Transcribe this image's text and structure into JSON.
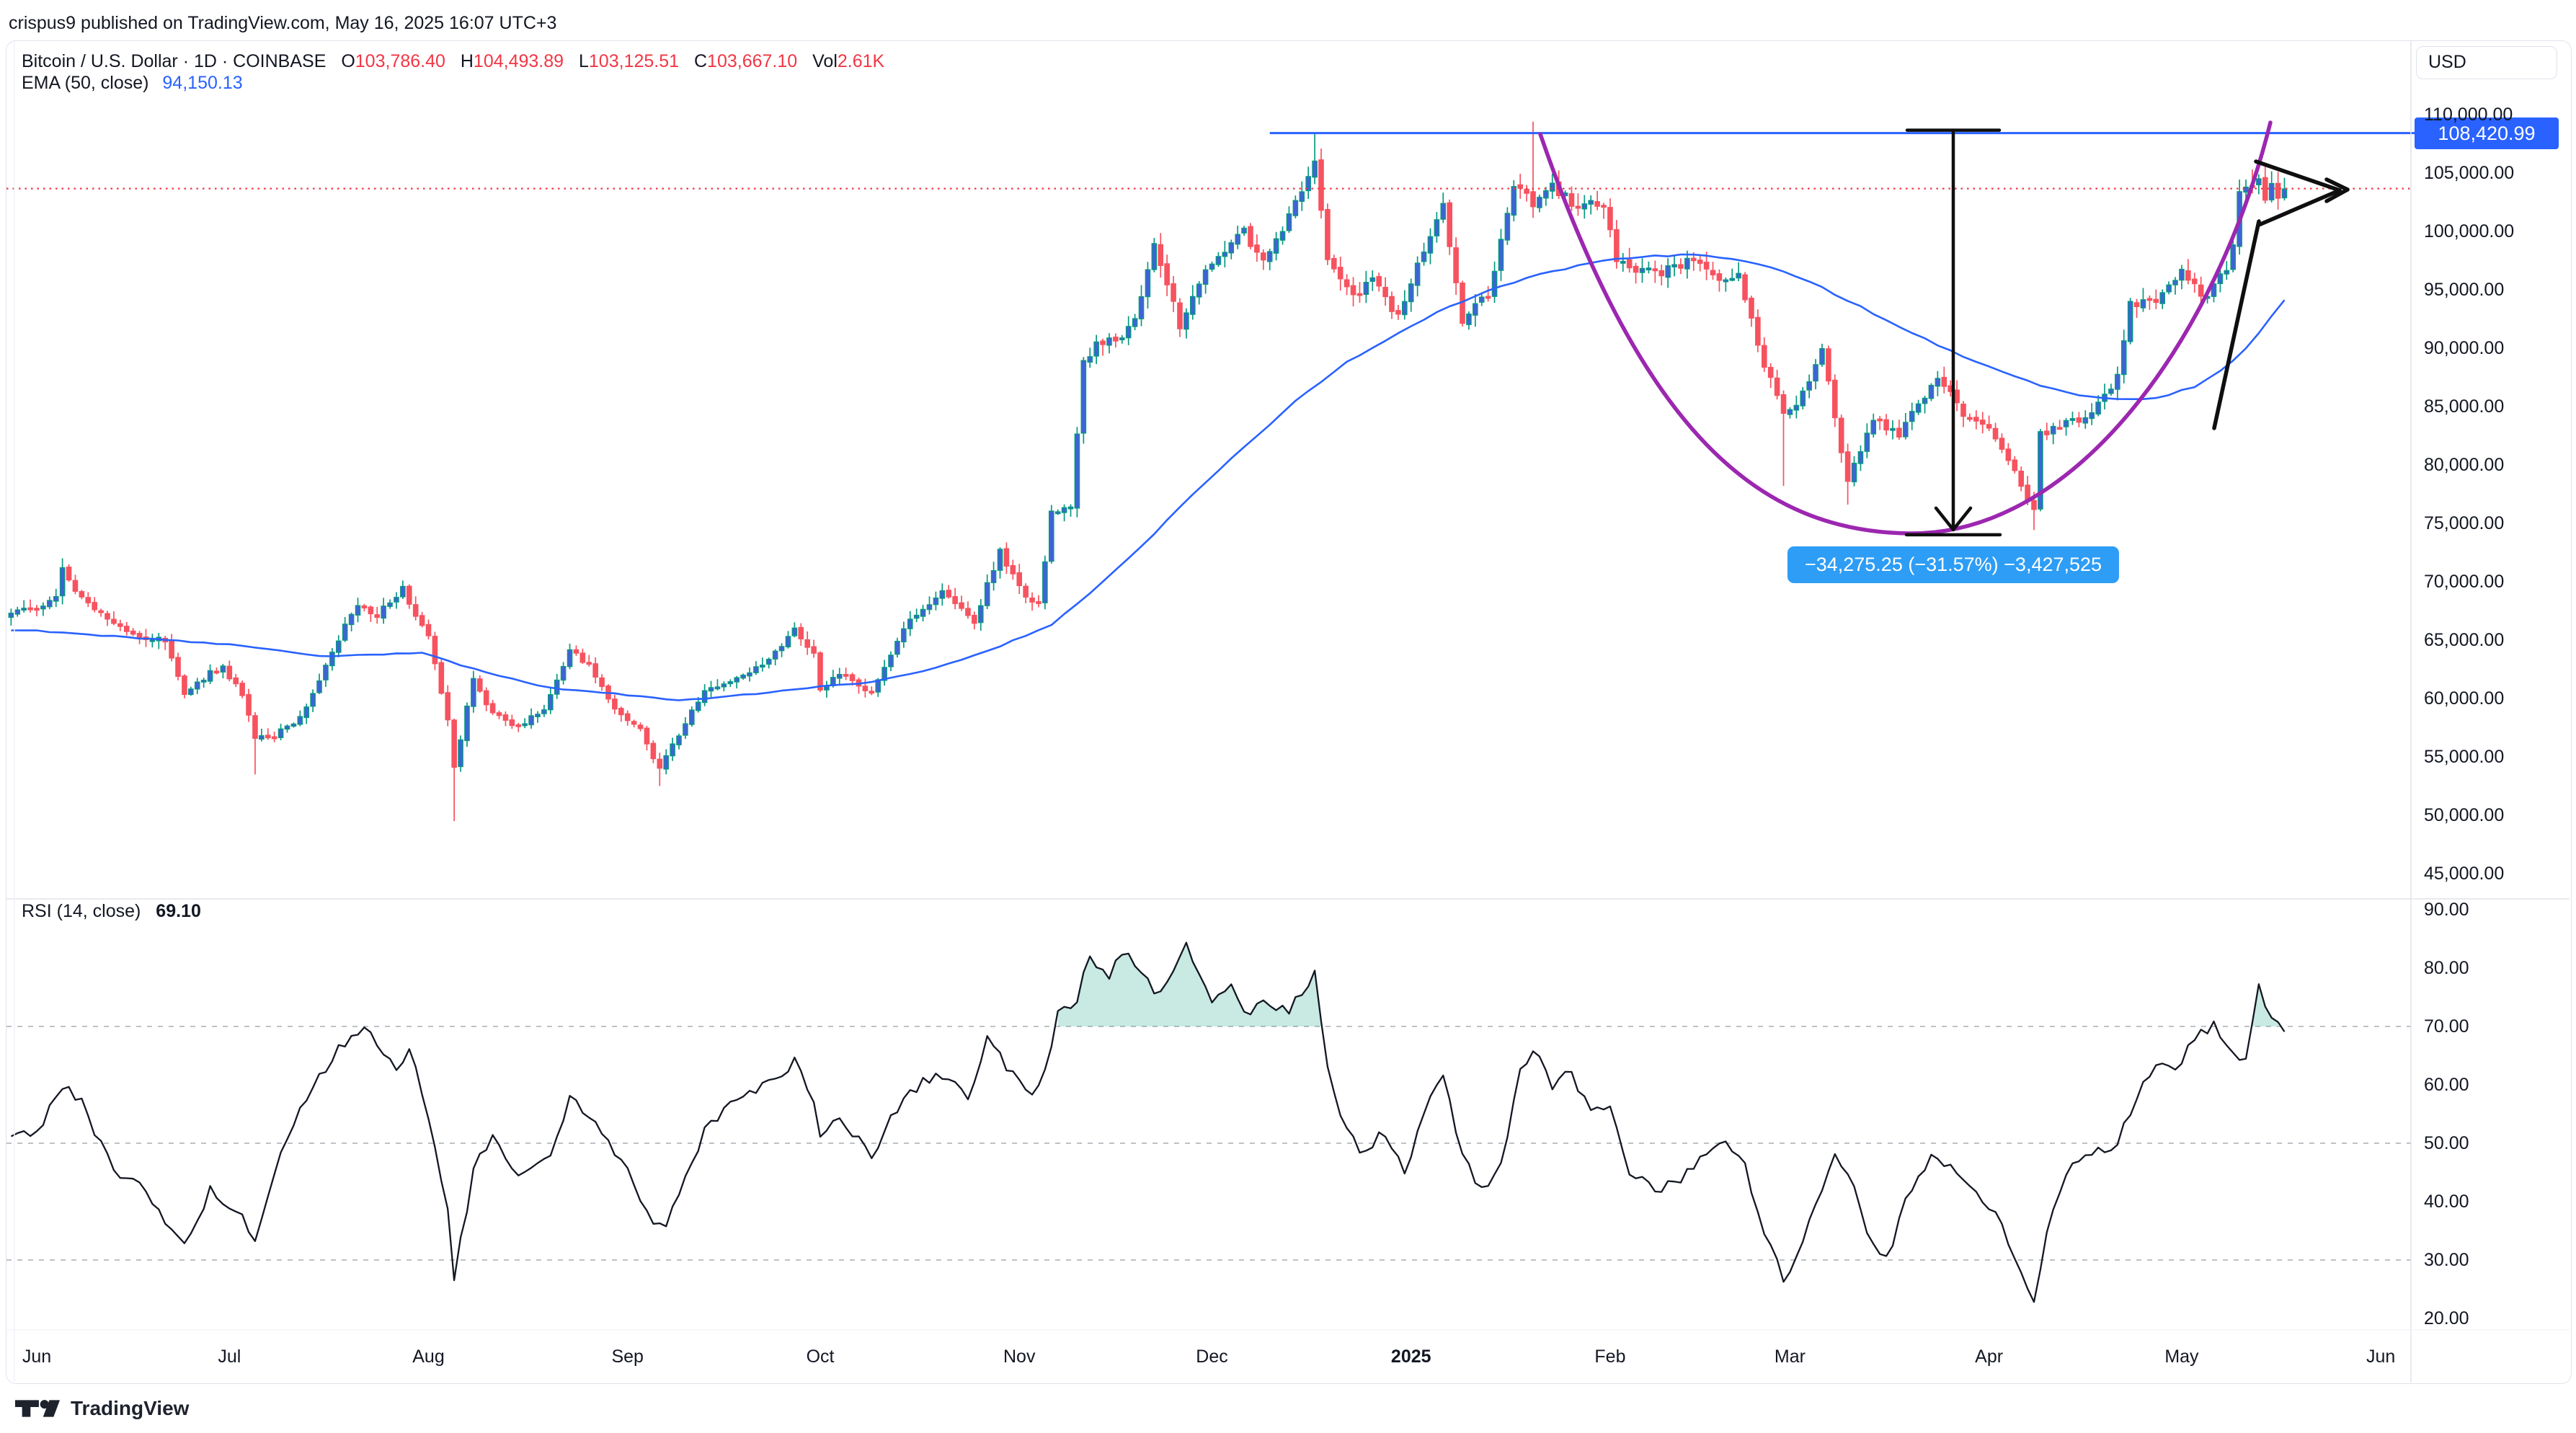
{
  "page": {
    "published_line": "crispus9 published on TradingView.com, May 16, 2025 16:07 UTC+3",
    "brand": "TradingView"
  },
  "legend": {
    "symbol": "Bitcoin / U.S. Dollar",
    "separator": "·",
    "interval": "1D",
    "exchange": "COINBASE",
    "o_label": "O",
    "o_value": "103,786.40",
    "h_label": "H",
    "h_value": "104,493.89",
    "l_label": "L",
    "l_value": "103,125.51",
    "c_label": "C",
    "c_value": "103,667.10",
    "vol_label": "Vol",
    "vol_value": "2.61K",
    "ema_label": "EMA (50, close)",
    "ema_value": "94,150.13"
  },
  "rsi_legend": {
    "label": "RSI (14, close)",
    "value": "69.10"
  },
  "axis": {
    "currency": "USD",
    "last_badge": "108,420.99",
    "price_ticks": [
      {
        "value": 110000,
        "label": "110,000.00"
      },
      {
        "value": 105000,
        "label": "105,000.00"
      },
      {
        "value": 100000,
        "label": "100,000.00"
      },
      {
        "value": 95000,
        "label": "95,000.00"
      },
      {
        "value": 90000,
        "label": "90,000.00"
      },
      {
        "value": 85000,
        "label": "85,000.00"
      },
      {
        "value": 80000,
        "label": "80,000.00"
      },
      {
        "value": 75000,
        "label": "75,000.00"
      },
      {
        "value": 70000,
        "label": "70,000.00"
      },
      {
        "value": 65000,
        "label": "65,000.00"
      },
      {
        "value": 60000,
        "label": "60,000.00"
      },
      {
        "value": 55000,
        "label": "55,000.00"
      },
      {
        "value": 50000,
        "label": "50,000.00"
      },
      {
        "value": 45000,
        "label": "45,000.00"
      }
    ],
    "rsi_ticks": [
      {
        "value": 90,
        "label": "90.00"
      },
      {
        "value": 80,
        "label": "80.00"
      },
      {
        "value": 70,
        "label": "70.00"
      },
      {
        "value": 60,
        "label": "60.00"
      },
      {
        "value": 50,
        "label": "50.00"
      },
      {
        "value": 40,
        "label": "40.00"
      },
      {
        "value": 30,
        "label": "30.00"
      },
      {
        "value": 20,
        "label": "20.00"
      }
    ],
    "time_ticks": [
      {
        "label": "Jun",
        "day": 0,
        "bold": false
      },
      {
        "label": "Jul",
        "day": 30,
        "bold": false
      },
      {
        "label": "Aug",
        "day": 61,
        "bold": false
      },
      {
        "label": "Sep",
        "day": 92,
        "bold": false
      },
      {
        "label": "Oct",
        "day": 122,
        "bold": false
      },
      {
        "label": "Nov",
        "day": 153,
        "bold": false
      },
      {
        "label": "Dec",
        "day": 183,
        "bold": false
      },
      {
        "label": "2025",
        "day": 214,
        "bold": true
      },
      {
        "label": "Feb",
        "day": 245,
        "bold": false
      },
      {
        "label": "Mar",
        "day": 273,
        "bold": false
      },
      {
        "label": "Apr",
        "day": 304,
        "bold": false
      },
      {
        "label": "May",
        "day": 334,
        "bold": false
      },
      {
        "label": "Jun",
        "day": 365,
        "bold": false
      }
    ]
  },
  "measure": {
    "label": "−34,275.25 (−31.57%) −3,427,525"
  },
  "chart_data": {
    "type": "candlestick+rsi",
    "title": "Bitcoin / U.S. Dollar · 1D · COINBASE",
    "x_range_days": [
      "2024-06-01",
      "2025-06-01"
    ],
    "price_axis_range": [
      45000,
      111500
    ],
    "rsi_axis_range": [
      18,
      92
    ],
    "last_ohlc": {
      "open": 103786.4,
      "high": 104493.89,
      "low": 103125.51,
      "close": 103667.1,
      "volume": "2.61K"
    },
    "ema_period": 50,
    "ema_last": 94150.13,
    "rsi_period": 14,
    "rsi_last": 69.1,
    "resistance_level": 108420.99,
    "measured_move": {
      "change": -34275.25,
      "percent": -31.57,
      "contracts": -3427525
    },
    "seed": 20250516,
    "close_anchors_day_price": [
      [
        0,
        67500
      ],
      [
        3,
        68900
      ],
      [
        4,
        71000
      ],
      [
        6,
        69300
      ],
      [
        10,
        67300
      ],
      [
        13,
        66100
      ],
      [
        17,
        65200
      ],
      [
        20,
        64900
      ],
      [
        23,
        60300
      ],
      [
        26,
        61800
      ],
      [
        29,
        62800
      ],
      [
        32,
        60200
      ],
      [
        34,
        56600
      ],
      [
        37,
        56800
      ],
      [
        40,
        57900
      ],
      [
        42,
        59200
      ],
      [
        46,
        64100
      ],
      [
        50,
        68200
      ],
      [
        53,
        67100
      ],
      [
        57,
        69400
      ],
      [
        60,
        66200
      ],
      [
        61,
        65300
      ],
      [
        64,
        58200
      ],
      [
        65,
        54000
      ],
      [
        68,
        61700
      ],
      [
        71,
        58700
      ],
      [
        75,
        57600
      ],
      [
        79,
        59000
      ],
      [
        83,
        64100
      ],
      [
        86,
        62900
      ],
      [
        90,
        59100
      ],
      [
        94,
        57400
      ],
      [
        97,
        53900
      ],
      [
        100,
        57000
      ],
      [
        104,
        60600
      ],
      [
        109,
        61700
      ],
      [
        114,
        63300
      ],
      [
        118,
        65800
      ],
      [
        121,
        63800
      ],
      [
        122,
        60800
      ],
      [
        125,
        62100
      ],
      [
        130,
        60600
      ],
      [
        135,
        66100
      ],
      [
        141,
        69000
      ],
      [
        146,
        66700
      ],
      [
        150,
        72700
      ],
      [
        153,
        69400
      ],
      [
        156,
        68000
      ],
      [
        158,
        75900
      ],
      [
        161,
        76700
      ],
      [
        163,
        88700
      ],
      [
        165,
        90500
      ],
      [
        168,
        90600
      ],
      [
        171,
        92300
      ],
      [
        174,
        98900
      ],
      [
        178,
        91900
      ],
      [
        182,
        96400
      ],
      [
        186,
        98800
      ],
      [
        188,
        99900
      ],
      [
        191,
        97300
      ],
      [
        194,
        100100
      ],
      [
        199,
        106100
      ],
      [
        201,
        97500
      ],
      [
        205,
        94300
      ],
      [
        208,
        95800
      ],
      [
        212,
        92600
      ],
      [
        215,
        96900
      ],
      [
        219,
        102100
      ],
      [
        222,
        92500
      ],
      [
        226,
        94600
      ],
      [
        230,
        104000
      ],
      [
        233,
        102300
      ],
      [
        236,
        103900
      ],
      [
        240,
        102100
      ],
      [
        244,
        102400
      ],
      [
        246,
        97700
      ],
      [
        249,
        96600
      ],
      [
        253,
        96500
      ],
      [
        258,
        97500
      ],
      [
        262,
        95700
      ],
      [
        265,
        96100
      ],
      [
        269,
        88700
      ],
      [
        272,
        84300
      ],
      [
        275,
        86000
      ],
      [
        278,
        90000
      ],
      [
        282,
        78500
      ],
      [
        286,
        83900
      ],
      [
        290,
        82700
      ],
      [
        296,
        87500
      ],
      [
        300,
        84400
      ],
      [
        305,
        82500
      ],
      [
        309,
        78200
      ],
      [
        311,
        76300
      ],
      [
        312,
        82600
      ],
      [
        316,
        83700
      ],
      [
        319,
        84000
      ],
      [
        324,
        87500
      ],
      [
        326,
        93700
      ],
      [
        330,
        94000
      ],
      [
        334,
        96500
      ],
      [
        338,
        94200
      ],
      [
        341,
        97000
      ],
      [
        342,
        99000
      ],
      [
        343,
        103000
      ],
      [
        345,
        104100
      ],
      [
        346,
        104200
      ],
      [
        347,
        102700
      ],
      [
        348,
        103900
      ],
      [
        349,
        103100
      ],
      [
        350,
        103667
      ]
    ],
    "wick_events": [
      {
        "d": 4,
        "hi": 72000
      },
      {
        "d": 34,
        "lo": 53500
      },
      {
        "d": 65,
        "lo": 49500
      },
      {
        "d": 97,
        "lo": 52500
      },
      {
        "d": 199,
        "hi": 108365
      },
      {
        "d": 233,
        "hi": 109400
      },
      {
        "d": 272,
        "lo": 78200
      },
      {
        "d": 282,
        "lo": 76600
      },
      {
        "d": 311,
        "lo": 74420
      },
      {
        "d": 345,
        "hi": 105300
      }
    ],
    "ema_anchors_day_price": [
      [
        0,
        65800
      ],
      [
        15,
        65200
      ],
      [
        30,
        64600
      ],
      [
        45,
        63600
      ],
      [
        60,
        63900
      ],
      [
        70,
        62200
      ],
      [
        80,
        60900
      ],
      [
        90,
        60400
      ],
      [
        100,
        59800
      ],
      [
        110,
        60300
      ],
      [
        120,
        60900
      ],
      [
        130,
        61400
      ],
      [
        140,
        62600
      ],
      [
        150,
        64500
      ],
      [
        158,
        66300
      ],
      [
        165,
        69500
      ],
      [
        172,
        73000
      ],
      [
        180,
        77500
      ],
      [
        188,
        81500
      ],
      [
        196,
        85500
      ],
      [
        204,
        88800
      ],
      [
        212,
        91300
      ],
      [
        220,
        93600
      ],
      [
        228,
        95300
      ],
      [
        236,
        96600
      ],
      [
        244,
        97500
      ],
      [
        252,
        97900
      ],
      [
        258,
        98000
      ],
      [
        264,
        97700
      ],
      [
        270,
        96900
      ],
      [
        276,
        95700
      ],
      [
        282,
        94100
      ],
      [
        288,
        92400
      ],
      [
        294,
        90800
      ],
      [
        300,
        89300
      ],
      [
        306,
        88000
      ],
      [
        312,
        86800
      ],
      [
        318,
        86000
      ],
      [
        324,
        85600
      ],
      [
        328,
        85600
      ],
      [
        332,
        86000
      ],
      [
        336,
        86700
      ],
      [
        340,
        88000
      ],
      [
        344,
        90000
      ],
      [
        347,
        92000
      ],
      [
        350,
        94150
      ]
    ],
    "rsi_anchors_day_value": [
      [
        0,
        52
      ],
      [
        4,
        60
      ],
      [
        7,
        57
      ],
      [
        12,
        45
      ],
      [
        17,
        42
      ],
      [
        23,
        32
      ],
      [
        27,
        42
      ],
      [
        32,
        38
      ],
      [
        34,
        33
      ],
      [
        37,
        45
      ],
      [
        42,
        58
      ],
      [
        47,
        66
      ],
      [
        51,
        70
      ],
      [
        56,
        62
      ],
      [
        58,
        66
      ],
      [
        61,
        55
      ],
      [
        64,
        38
      ],
      [
        65,
        27
      ],
      [
        68,
        45
      ],
      [
        71,
        52
      ],
      [
        75,
        44
      ],
      [
        80,
        48
      ],
      [
        83,
        58
      ],
      [
        88,
        52
      ],
      [
        92,
        45
      ],
      [
        95,
        38
      ],
      [
        98,
        35
      ],
      [
        100,
        42
      ],
      [
        104,
        52
      ],
      [
        108,
        57
      ],
      [
        114,
        60
      ],
      [
        118,
        64
      ],
      [
        121,
        57
      ],
      [
        122,
        51
      ],
      [
        125,
        54
      ],
      [
        130,
        48
      ],
      [
        135,
        58
      ],
      [
        140,
        62
      ],
      [
        145,
        58
      ],
      [
        148,
        68
      ],
      [
        151,
        63
      ],
      [
        155,
        58
      ],
      [
        157,
        62
      ],
      [
        159,
        72
      ],
      [
        162,
        75
      ],
      [
        164,
        82
      ],
      [
        167,
        78
      ],
      [
        169,
        83
      ],
      [
        172,
        80
      ],
      [
        174,
        75
      ],
      [
        176,
        78
      ],
      [
        179,
        84
      ],
      [
        183,
        74
      ],
      [
        186,
        78
      ],
      [
        188,
        72
      ],
      [
        191,
        74
      ],
      [
        195,
        73
      ],
      [
        199,
        79
      ],
      [
        201,
        64
      ],
      [
        203,
        55
      ],
      [
        206,
        48
      ],
      [
        210,
        52
      ],
      [
        213,
        45
      ],
      [
        216,
        55
      ],
      [
        219,
        62
      ],
      [
        222,
        48
      ],
      [
        225,
        42
      ],
      [
        228,
        46
      ],
      [
        231,
        62
      ],
      [
        233,
        66
      ],
      [
        236,
        60
      ],
      [
        239,
        62
      ],
      [
        242,
        55
      ],
      [
        245,
        56
      ],
      [
        248,
        45
      ],
      [
        252,
        42
      ],
      [
        256,
        44
      ],
      [
        260,
        48
      ],
      [
        263,
        50
      ],
      [
        266,
        46
      ],
      [
        269,
        35
      ],
      [
        272,
        27
      ],
      [
        274,
        30
      ],
      [
        277,
        40
      ],
      [
        280,
        48
      ],
      [
        283,
        42
      ],
      [
        285,
        35
      ],
      [
        288,
        30
      ],
      [
        291,
        40
      ],
      [
        295,
        48
      ],
      [
        299,
        45
      ],
      [
        302,
        42
      ],
      [
        305,
        38
      ],
      [
        308,
        30
      ],
      [
        311,
        23
      ],
      [
        313,
        35
      ],
      [
        316,
        45
      ],
      [
        320,
        48
      ],
      [
        324,
        50
      ],
      [
        327,
        58
      ],
      [
        330,
        64
      ],
      [
        333,
        62
      ],
      [
        336,
        68
      ],
      [
        339,
        70
      ],
      [
        342,
        66
      ],
      [
        344,
        64
      ],
      [
        346,
        77
      ],
      [
        348,
        71
      ],
      [
        350,
        69.1
      ]
    ],
    "rsi_bands": [
      70,
      50,
      30
    ],
    "colors": {
      "up_body": "#3f62d8",
      "up_border": "#089981",
      "down": "#f7525f",
      "ema": "#2962ff",
      "resistance_line": "#2962ff",
      "last_price_dotted": "#f23645",
      "cup": "#9c27b0",
      "drawing_black": "#0f0f0f",
      "rsi_line": "#131722",
      "band_dash": "#9b9fa8",
      "overbought_fill": "#089981",
      "measure_badge_bg": "#2e9df5",
      "axis_badge_bg": "#2962ff"
    }
  }
}
